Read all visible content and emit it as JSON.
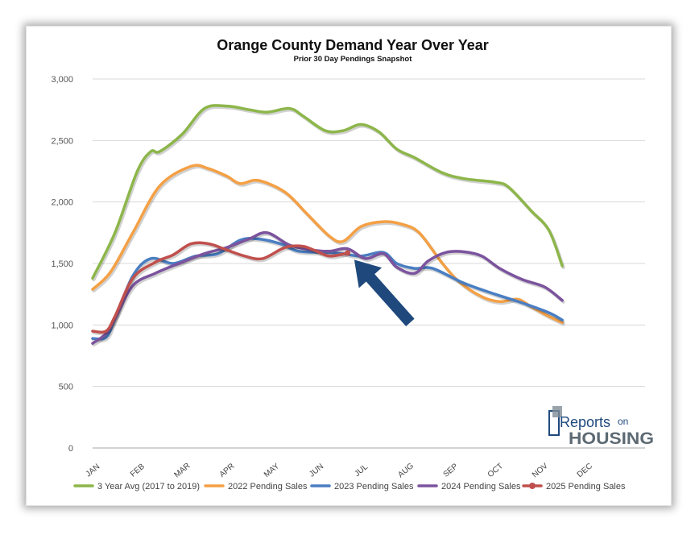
{
  "chart_data": {
    "type": "line",
    "title": "Orange County Demand Year Over Year",
    "subtitle": "Prior 30 Day Pendings Snapshot",
    "xlabel": "",
    "ylabel": "",
    "categories": [
      "JAN",
      "FEB",
      "MAR",
      "APR",
      "MAY",
      "JUN",
      "JUL",
      "AUG",
      "SEP",
      "OCT",
      "NOV",
      "DEC"
    ],
    "xlim": [
      0,
      12.35
    ],
    "ylim": [
      0,
      3000
    ],
    "yticks": [
      0,
      500,
      1000,
      1500,
      2000,
      2500,
      3000
    ],
    "ytick_labels": [
      "0",
      "500",
      "1,000",
      "1,500",
      "2,000",
      "2,500",
      "3,000"
    ],
    "grid": "horizontal",
    "legend_position": "bottom",
    "series": [
      {
        "name": "3 Year Avg (2017 to 2019)",
        "color": "#8db64a",
        "points": [
          [
            0,
            1380
          ],
          [
            0.5,
            1750
          ],
          [
            1,
            2250
          ],
          [
            1.3,
            2410
          ],
          [
            1.5,
            2410
          ],
          [
            2,
            2550
          ],
          [
            2.5,
            2760
          ],
          [
            3,
            2780
          ],
          [
            3.5,
            2750
          ],
          [
            3.9,
            2730
          ],
          [
            4.4,
            2760
          ],
          [
            4.7,
            2700
          ],
          [
            5.2,
            2580
          ],
          [
            5.6,
            2580
          ],
          [
            6,
            2630
          ],
          [
            6.4,
            2570
          ],
          [
            6.8,
            2430
          ],
          [
            7.2,
            2360
          ],
          [
            7.8,
            2240
          ],
          [
            8.3,
            2190
          ],
          [
            9,
            2160
          ],
          [
            9.3,
            2120
          ],
          [
            9.8,
            1930
          ],
          [
            10.2,
            1770
          ],
          [
            10.5,
            1480
          ]
        ]
      },
      {
        "name": "2022 Pending Sales",
        "color": "#f4a045",
        "points": [
          [
            0,
            1290
          ],
          [
            0.4,
            1430
          ],
          [
            0.9,
            1750
          ],
          [
            1.5,
            2130
          ],
          [
            2.2,
            2290
          ],
          [
            2.6,
            2270
          ],
          [
            3,
            2210
          ],
          [
            3.3,
            2150
          ],
          [
            3.7,
            2175
          ],
          [
            4.3,
            2080
          ],
          [
            4.8,
            1900
          ],
          [
            5.3,
            1720
          ],
          [
            5.6,
            1680
          ],
          [
            6,
            1800
          ],
          [
            6.5,
            1840
          ],
          [
            6.9,
            1820
          ],
          [
            7.3,
            1750
          ],
          [
            7.8,
            1510
          ],
          [
            8.2,
            1350
          ],
          [
            8.7,
            1230
          ],
          [
            9.1,
            1190
          ],
          [
            9.5,
            1210
          ],
          [
            9.8,
            1150
          ],
          [
            10.2,
            1070
          ],
          [
            10.5,
            1020
          ]
        ]
      },
      {
        "name": "2023 Pending Sales",
        "color": "#4a7ec2",
        "points": [
          [
            0,
            890
          ],
          [
            0.3,
            900
          ],
          [
            0.5,
            1050
          ],
          [
            0.9,
            1400
          ],
          [
            1.3,
            1540
          ],
          [
            1.8,
            1500
          ],
          [
            2.3,
            1560
          ],
          [
            2.8,
            1580
          ],
          [
            3.3,
            1690
          ],
          [
            3.7,
            1700
          ],
          [
            4.2,
            1660
          ],
          [
            4.6,
            1600
          ],
          [
            5.2,
            1590
          ],
          [
            5.6,
            1580
          ],
          [
            6,
            1560
          ],
          [
            6.5,
            1590
          ],
          [
            6.8,
            1500
          ],
          [
            7.2,
            1460
          ],
          [
            7.6,
            1460
          ],
          [
            8.3,
            1340
          ],
          [
            9,
            1250
          ],
          [
            9.6,
            1180
          ],
          [
            10.2,
            1100
          ],
          [
            10.5,
            1040
          ]
        ]
      },
      {
        "name": "2024 Pending Sales",
        "color": "#7b539e",
        "points": [
          [
            0,
            850
          ],
          [
            0.3,
            930
          ],
          [
            0.5,
            1050
          ],
          [
            0.9,
            1320
          ],
          [
            1.4,
            1420
          ],
          [
            2,
            1510
          ],
          [
            2.5,
            1580
          ],
          [
            3,
            1630
          ],
          [
            3.5,
            1700
          ],
          [
            3.9,
            1750
          ],
          [
            4.4,
            1650
          ],
          [
            4.9,
            1610
          ],
          [
            5.3,
            1600
          ],
          [
            5.7,
            1620
          ],
          [
            6.1,
            1540
          ],
          [
            6.5,
            1580
          ],
          [
            6.8,
            1470
          ],
          [
            7.2,
            1420
          ],
          [
            7.5,
            1520
          ],
          [
            7.9,
            1590
          ],
          [
            8.3,
            1595
          ],
          [
            8.7,
            1560
          ],
          [
            9.1,
            1460
          ],
          [
            9.6,
            1370
          ],
          [
            10.1,
            1310
          ],
          [
            10.5,
            1200
          ]
        ]
      },
      {
        "name": "2025 Pending Sales",
        "color": "#c0504d",
        "points": [
          [
            0,
            950
          ],
          [
            0.3,
            950
          ],
          [
            0.5,
            1070
          ],
          [
            0.9,
            1380
          ],
          [
            1.4,
            1510
          ],
          [
            1.8,
            1570
          ],
          [
            2.2,
            1660
          ],
          [
            2.6,
            1660
          ],
          [
            3,
            1610
          ],
          [
            3.4,
            1560
          ],
          [
            3.8,
            1540
          ],
          [
            4.3,
            1630
          ],
          [
            4.7,
            1640
          ],
          [
            5,
            1600
          ],
          [
            5.3,
            1560
          ],
          [
            5.7,
            1585
          ]
        ]
      }
    ],
    "annotation": {
      "type": "arrow",
      "color": "#1f497d",
      "from": [
        7.1,
        1020
      ],
      "to": [
        5.85,
        1530
      ]
    },
    "logo_text": [
      "Reports",
      "on",
      "HOUSING"
    ]
  }
}
